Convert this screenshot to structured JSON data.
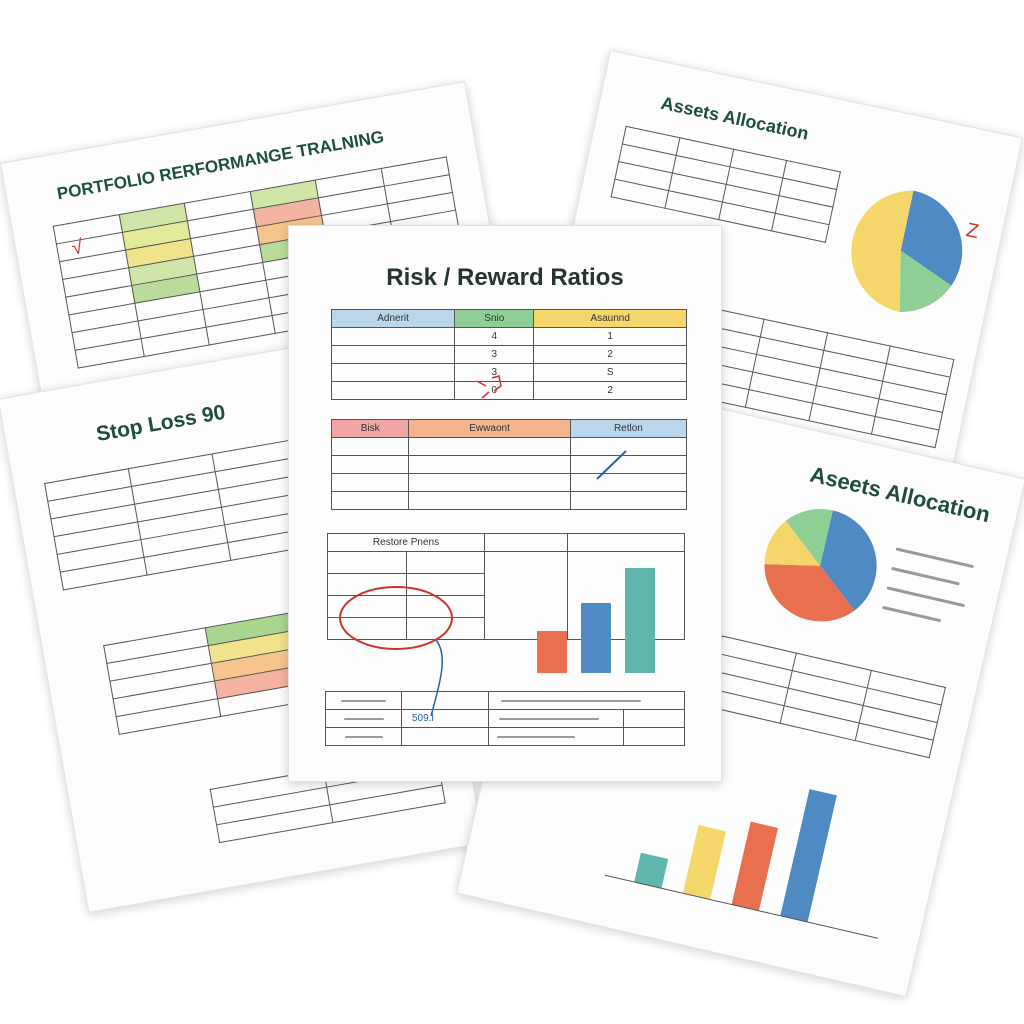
{
  "papers": {
    "portfolio": {
      "title": "PORTFOLIO RERFORMANGE TRALNING",
      "mark": "√"
    },
    "assets_top": {
      "title": "Assets Allocation",
      "mark": "Z"
    },
    "stop_loss": {
      "title": "Stop Loss 90"
    },
    "assets_bottom": {
      "title": "Aseets Allocation"
    },
    "risk_reward": {
      "title": "Risk / Reward Ratios",
      "table1": {
        "headers": [
          "Adnerit",
          "Snio",
          "Asaunnd"
        ],
        "header_colors": [
          "#b9d6ea",
          "#8fcf95",
          "#f5d66b"
        ],
        "rows": [
          [
            "",
            "4",
            "1"
          ],
          [
            "",
            "3",
            "2"
          ],
          [
            "",
            "3",
            "S"
          ],
          [
            "",
            "0",
            "2"
          ]
        ]
      },
      "table2": {
        "headers": [
          "Bisk",
          "Ewwaont",
          "Retlon"
        ],
        "header_colors": [
          "#f2a5a5",
          "#f4b48f",
          "#b9d6ea"
        ]
      },
      "table3": {
        "header": "Restore Pnens"
      },
      "table4": {
        "note": "509.l"
      },
      "bars": {
        "values": [
          3,
          5,
          7.5
        ],
        "colors": [
          "#e8704e",
          "#4f8ac2",
          "#5fb6ac"
        ]
      }
    }
  },
  "colors": {
    "title_green": "#1e4d3c",
    "red_ink": "#d0332b",
    "blue_ink": "#2660a8"
  }
}
